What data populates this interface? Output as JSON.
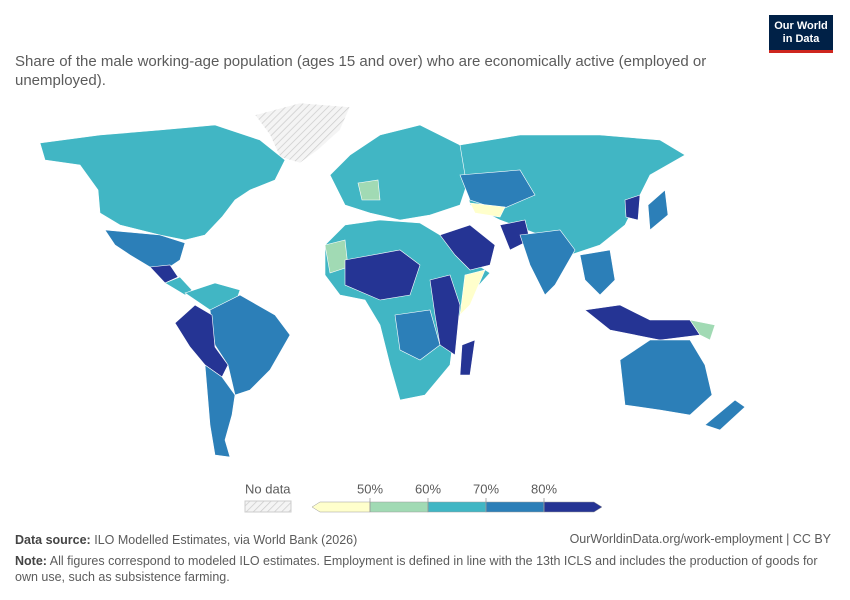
{
  "header": {
    "logo": [
      "Our World",
      "in Data"
    ],
    "subtitle": "Share of the male working-age population (ages 15 and over) who are economically active (employed or unemployed)."
  },
  "legend": {
    "no_data": "No data",
    "ticks": [
      {
        "value": 50,
        "label": "50%"
      },
      {
        "value": 60,
        "label": "60%"
      },
      {
        "value": 70,
        "label": "70%"
      },
      {
        "value": 80,
        "label": "80%"
      }
    ],
    "colors": [
      "#ffffcc",
      "#a1dab4",
      "#41b6c4",
      "#2c7fb8",
      "#253494"
    ]
  },
  "footer": {
    "source_label": "Data source:",
    "source": "ILO Modelled Estimates, via World Bank (2026)",
    "url": "OurWorldinData.org/work-employment | CC BY",
    "note_label": "Note:",
    "note": "All figures correspond to modeled ILO estimates. Employment is defined in line with the 13th ICLS and includes the production of goods for own use, such as subsistence farming."
  }
}
